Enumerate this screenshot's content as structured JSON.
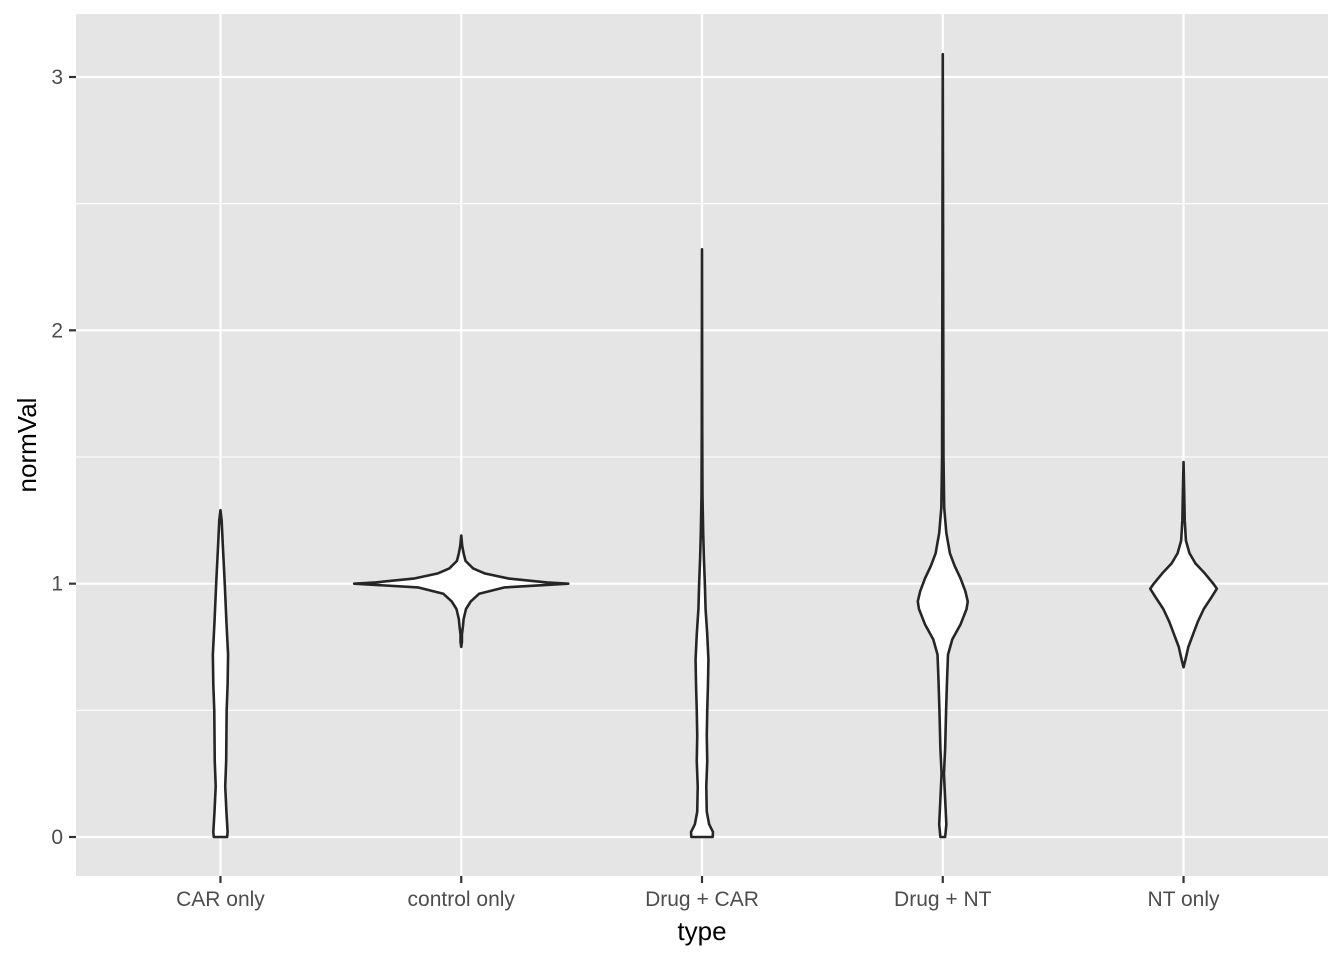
{
  "chart_data": {
    "type": "violin",
    "xlabel": "type",
    "ylabel": "normVal",
    "ylim": [
      -0.15,
      3.25
    ],
    "yticks": [
      0,
      1,
      2,
      3
    ],
    "yticks_minor": [
      0.5,
      1.5,
      2.5
    ],
    "categories": [
      "CAR only",
      "control only",
      "Drug + CAR",
      "Drug + NT",
      "NT only"
    ],
    "grid": true,
    "panel_background": "#e5e5e5",
    "grid_color": "#ffffff",
    "outline_color": "#262626",
    "fill_color": "#ffffff",
    "violins": [
      {
        "category": "CAR only",
        "profile": [
          [
            0.0,
            0.028
          ],
          [
            0.02,
            0.03
          ],
          [
            0.1,
            0.025
          ],
          [
            0.2,
            0.02
          ],
          [
            0.3,
            0.024
          ],
          [
            0.4,
            0.025
          ],
          [
            0.5,
            0.026
          ],
          [
            0.6,
            0.03
          ],
          [
            0.72,
            0.032
          ],
          [
            0.85,
            0.025
          ],
          [
            1.0,
            0.018
          ],
          [
            1.15,
            0.01
          ],
          [
            1.25,
            0.005
          ],
          [
            1.29,
            0.0
          ]
        ]
      },
      {
        "category": "control only",
        "profile": [
          [
            0.75,
            0.0
          ],
          [
            0.77,
            0.003
          ],
          [
            0.8,
            0.003
          ],
          [
            0.83,
            0.007
          ],
          [
            0.86,
            0.01
          ],
          [
            0.9,
            0.02
          ],
          [
            0.93,
            0.04
          ],
          [
            0.96,
            0.075
          ],
          [
            0.985,
            0.18
          ],
          [
            0.995,
            0.36
          ],
          [
            1.0,
            0.45
          ],
          [
            1.005,
            0.36
          ],
          [
            1.02,
            0.2
          ],
          [
            1.04,
            0.1
          ],
          [
            1.06,
            0.05
          ],
          [
            1.09,
            0.018
          ],
          [
            1.12,
            0.01
          ],
          [
            1.15,
            0.004
          ],
          [
            1.19,
            0.0
          ]
        ]
      },
      {
        "category": "Drug + CAR",
        "profile": [
          [
            0.0,
            0.045
          ],
          [
            0.02,
            0.046
          ],
          [
            0.05,
            0.03
          ],
          [
            0.1,
            0.02
          ],
          [
            0.2,
            0.018
          ],
          [
            0.3,
            0.022
          ],
          [
            0.4,
            0.02
          ],
          [
            0.5,
            0.022
          ],
          [
            0.6,
            0.025
          ],
          [
            0.7,
            0.027
          ],
          [
            0.8,
            0.022
          ],
          [
            0.9,
            0.015
          ],
          [
            1.0,
            0.012
          ],
          [
            1.1,
            0.008
          ],
          [
            1.2,
            0.005
          ],
          [
            1.35,
            0.002
          ],
          [
            1.6,
            0.001
          ],
          [
            2.32,
            0.0
          ]
        ]
      },
      {
        "category": "Drug + NT",
        "profile": [
          [
            0.0,
            0.01
          ],
          [
            0.05,
            0.015
          ],
          [
            0.15,
            0.01
          ],
          [
            0.25,
            0.005
          ],
          [
            0.35,
            0.01
          ],
          [
            0.5,
            0.014
          ],
          [
            0.62,
            0.018
          ],
          [
            0.72,
            0.022
          ],
          [
            0.78,
            0.04
          ],
          [
            0.84,
            0.075
          ],
          [
            0.9,
            0.1
          ],
          [
            0.93,
            0.105
          ],
          [
            0.97,
            0.095
          ],
          [
            1.02,
            0.075
          ],
          [
            1.07,
            0.05
          ],
          [
            1.12,
            0.03
          ],
          [
            1.2,
            0.015
          ],
          [
            1.3,
            0.006
          ],
          [
            1.5,
            0.003
          ],
          [
            2.0,
            0.002
          ],
          [
            3.09,
            0.0
          ]
        ]
      },
      {
        "category": "NT only",
        "profile": [
          [
            0.67,
            0.0
          ],
          [
            0.7,
            0.008
          ],
          [
            0.75,
            0.02
          ],
          [
            0.8,
            0.04
          ],
          [
            0.85,
            0.06
          ],
          [
            0.9,
            0.085
          ],
          [
            0.95,
            0.12
          ],
          [
            0.98,
            0.14
          ],
          [
            1.0,
            0.125
          ],
          [
            1.04,
            0.09
          ],
          [
            1.08,
            0.05
          ],
          [
            1.12,
            0.025
          ],
          [
            1.17,
            0.01
          ],
          [
            1.25,
            0.005
          ],
          [
            1.35,
            0.003
          ],
          [
            1.48,
            0.0
          ]
        ]
      }
    ]
  }
}
